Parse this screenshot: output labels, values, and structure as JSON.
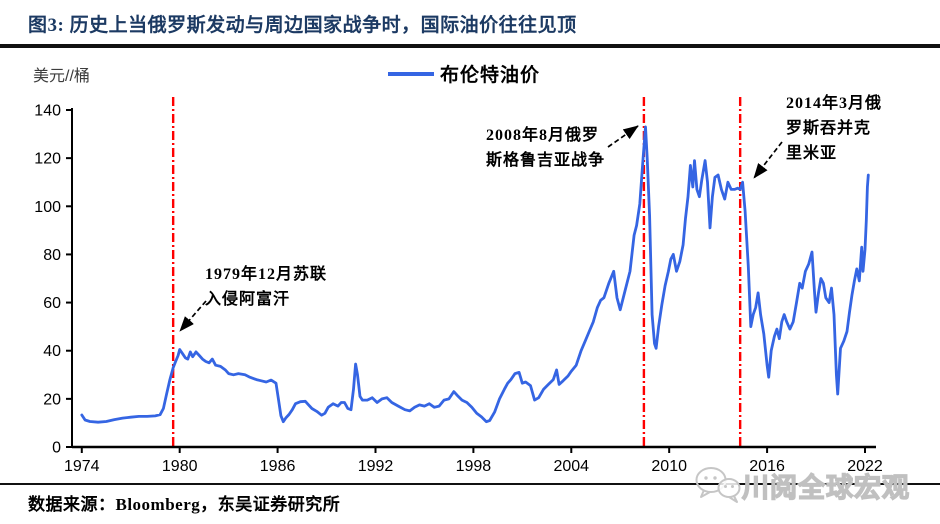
{
  "header": {
    "title": "图3:  历史上当俄罗斯发动与周边国家战争时，国际油价往往见顶"
  },
  "chart": {
    "unit_label": "美元//桶",
    "legend_label": "布伦特油价"
  },
  "annotations": {
    "afghanistan": {
      "text": "1979年12月苏联\n入侵阿富汗"
    },
    "georgia": {
      "text": "2008年8月俄罗\n斯格鲁吉亚战争"
    },
    "crimea": {
      "text": "2014年3月俄\n罗斯吞并克\n里米亚"
    }
  },
  "footer": {
    "source": "数据来源：Bloomberg，东吴证券研究所",
    "watermark": "川阅全球宏观"
  },
  "chart_data": {
    "type": "line",
    "title": "历史上当俄罗斯发动与周边国家战争时，国际油价往往见顶",
    "ylabel": "美元/桶",
    "ylim": [
      0,
      140
    ],
    "y_ticks": [
      0,
      20,
      40,
      60,
      80,
      100,
      120,
      140
    ],
    "x_ticks": [
      1974,
      1980,
      1986,
      1992,
      1998,
      2004,
      2010,
      2016,
      2022
    ],
    "x_range": [
      1973.4,
      2022.7
    ],
    "grid": false,
    "legend_position": "top-center",
    "colors": {
      "line": "#3565E3",
      "event_line": "#FF0000",
      "axis": "#000000",
      "title": "#1C3A63"
    },
    "event_lines": [
      {
        "year": 1979.6,
        "label": "1979年12月苏联入侵阿富汗"
      },
      {
        "year": 2008.45,
        "label": "2008年8月俄罗斯格鲁吉亚战争"
      },
      {
        "year": 2014.35,
        "label": "2014年3月俄罗斯吞并克里米亚"
      }
    ],
    "series": [
      {
        "name": "布伦特油价",
        "points": [
          [
            1974.0,
            13.3
          ],
          [
            1974.2,
            11.2
          ],
          [
            1974.5,
            10.6
          ],
          [
            1975.0,
            10.3
          ],
          [
            1975.5,
            10.6
          ],
          [
            1976.0,
            11.4
          ],
          [
            1976.5,
            12.0
          ],
          [
            1977.0,
            12.4
          ],
          [
            1977.5,
            12.7
          ],
          [
            1978.0,
            12.7
          ],
          [
            1978.5,
            12.9
          ],
          [
            1978.8,
            13.4
          ],
          [
            1979.0,
            16.0
          ],
          [
            1979.2,
            22.0
          ],
          [
            1979.4,
            28.0
          ],
          [
            1979.6,
            33.0
          ],
          [
            1979.75,
            35.5
          ],
          [
            1979.9,
            38.0
          ],
          [
            1980.0,
            40.5
          ],
          [
            1980.2,
            38.5
          ],
          [
            1980.35,
            37.0
          ],
          [
            1980.5,
            36.5
          ],
          [
            1980.65,
            39.5
          ],
          [
            1980.8,
            37.5
          ],
          [
            1981.0,
            39.5
          ],
          [
            1981.2,
            38.0
          ],
          [
            1981.4,
            36.5
          ],
          [
            1981.6,
            35.5
          ],
          [
            1981.8,
            35.0
          ],
          [
            1982.0,
            36.5
          ],
          [
            1982.2,
            34.0
          ],
          [
            1982.5,
            33.5
          ],
          [
            1982.8,
            32.0
          ],
          [
            1983.0,
            30.5
          ],
          [
            1983.3,
            30.0
          ],
          [
            1983.6,
            30.5
          ],
          [
            1984.0,
            30.0
          ],
          [
            1984.3,
            29.0
          ],
          [
            1984.7,
            28.0
          ],
          [
            1985.0,
            27.5
          ],
          [
            1985.3,
            27.0
          ],
          [
            1985.6,
            27.8
          ],
          [
            1985.9,
            26.5
          ],
          [
            1986.05,
            20.0
          ],
          [
            1986.2,
            13.0
          ],
          [
            1986.35,
            10.5
          ],
          [
            1986.5,
            12.0
          ],
          [
            1986.7,
            13.5
          ],
          [
            1986.9,
            15.5
          ],
          [
            1987.1,
            18.0
          ],
          [
            1987.4,
            18.8
          ],
          [
            1987.7,
            19.0
          ],
          [
            1987.9,
            17.5
          ],
          [
            1988.1,
            16.0
          ],
          [
            1988.4,
            14.8
          ],
          [
            1988.7,
            13.2
          ],
          [
            1988.9,
            14.0
          ],
          [
            1989.1,
            16.5
          ],
          [
            1989.4,
            18.0
          ],
          [
            1989.7,
            17.0
          ],
          [
            1989.9,
            18.5
          ],
          [
            1990.1,
            18.5
          ],
          [
            1990.3,
            16.0
          ],
          [
            1990.5,
            15.5
          ],
          [
            1990.65,
            24.0
          ],
          [
            1990.78,
            34.5
          ],
          [
            1990.9,
            30.0
          ],
          [
            1991.05,
            21.0
          ],
          [
            1991.2,
            19.5
          ],
          [
            1991.5,
            19.5
          ],
          [
            1991.8,
            20.5
          ],
          [
            1992.1,
            18.5
          ],
          [
            1992.4,
            20.0
          ],
          [
            1992.7,
            20.5
          ],
          [
            1993.0,
            18.5
          ],
          [
            1993.4,
            17.0
          ],
          [
            1993.8,
            15.5
          ],
          [
            1994.1,
            15.0
          ],
          [
            1994.4,
            16.5
          ],
          [
            1994.7,
            17.5
          ],
          [
            1995.0,
            17.0
          ],
          [
            1995.3,
            18.0
          ],
          [
            1995.6,
            16.5
          ],
          [
            1995.9,
            17.0
          ],
          [
            1996.2,
            19.5
          ],
          [
            1996.5,
            20.0
          ],
          [
            1996.8,
            23.0
          ],
          [
            1997.0,
            21.5
          ],
          [
            1997.3,
            19.5
          ],
          [
            1997.6,
            18.5
          ],
          [
            1997.9,
            16.5
          ],
          [
            1998.2,
            14.0
          ],
          [
            1998.5,
            12.5
          ],
          [
            1998.8,
            10.5
          ],
          [
            1999.0,
            11.0
          ],
          [
            1999.3,
            14.5
          ],
          [
            1999.6,
            20.0
          ],
          [
            1999.9,
            24.0
          ],
          [
            2000.1,
            26.5
          ],
          [
            2000.3,
            28.0
          ],
          [
            2000.55,
            30.5
          ],
          [
            2000.8,
            31.0
          ],
          [
            2001.0,
            26.5
          ],
          [
            2001.2,
            27.0
          ],
          [
            2001.5,
            25.5
          ],
          [
            2001.75,
            19.5
          ],
          [
            2002.0,
            20.5
          ],
          [
            2002.3,
            24.0
          ],
          [
            2002.6,
            26.0
          ],
          [
            2002.9,
            28.0
          ],
          [
            2003.1,
            32.0
          ],
          [
            2003.25,
            26.0
          ],
          [
            2003.5,
            27.5
          ],
          [
            2003.8,
            29.5
          ],
          [
            2004.0,
            31.5
          ],
          [
            2004.3,
            34.0
          ],
          [
            2004.6,
            40.0
          ],
          [
            2004.85,
            44.0
          ],
          [
            2005.1,
            48.0
          ],
          [
            2005.35,
            52.0
          ],
          [
            2005.6,
            58.0
          ],
          [
            2005.8,
            61.0
          ],
          [
            2006.0,
            62.0
          ],
          [
            2006.3,
            68.0
          ],
          [
            2006.6,
            73.0
          ],
          [
            2006.8,
            62.0
          ],
          [
            2007.0,
            57.0
          ],
          [
            2007.3,
            65.0
          ],
          [
            2007.6,
            73.0
          ],
          [
            2007.85,
            88.0
          ],
          [
            2008.0,
            92.0
          ],
          [
            2008.2,
            101.0
          ],
          [
            2008.4,
            120.0
          ],
          [
            2008.55,
            133.0
          ],
          [
            2008.65,
            120.0
          ],
          [
            2008.8,
            96.0
          ],
          [
            2008.95,
            55.0
          ],
          [
            2009.1,
            43.0
          ],
          [
            2009.2,
            41.0
          ],
          [
            2009.35,
            50.0
          ],
          [
            2009.55,
            59.0
          ],
          [
            2009.75,
            67.0
          ],
          [
            2009.95,
            73.0
          ],
          [
            2010.1,
            78.0
          ],
          [
            2010.25,
            80.0
          ],
          [
            2010.45,
            73.0
          ],
          [
            2010.65,
            77.0
          ],
          [
            2010.85,
            84.0
          ],
          [
            2011.0,
            95.0
          ],
          [
            2011.15,
            104.0
          ],
          [
            2011.3,
            117.0
          ],
          [
            2011.45,
            108.0
          ],
          [
            2011.55,
            119.0
          ],
          [
            2011.7,
            107.0
          ],
          [
            2011.85,
            104.0
          ],
          [
            2012.0,
            111.0
          ],
          [
            2012.2,
            119.0
          ],
          [
            2012.35,
            110.0
          ],
          [
            2012.5,
            91.0
          ],
          [
            2012.65,
            104.0
          ],
          [
            2012.8,
            112.0
          ],
          [
            2013.0,
            113.0
          ],
          [
            2013.2,
            107.0
          ],
          [
            2013.4,
            103.0
          ],
          [
            2013.6,
            110.0
          ],
          [
            2013.8,
            107.0
          ],
          [
            2014.0,
            107.0
          ],
          [
            2014.2,
            107.5
          ],
          [
            2014.35,
            107.0
          ],
          [
            2014.5,
            110.0
          ],
          [
            2014.65,
            98.0
          ],
          [
            2014.85,
            75.0
          ],
          [
            2015.0,
            50.0
          ],
          [
            2015.15,
            55.0
          ],
          [
            2015.3,
            58.0
          ],
          [
            2015.45,
            64.0
          ],
          [
            2015.6,
            55.0
          ],
          [
            2015.8,
            47.0
          ],
          [
            2016.0,
            34.0
          ],
          [
            2016.1,
            29.0
          ],
          [
            2016.25,
            40.0
          ],
          [
            2016.45,
            46.0
          ],
          [
            2016.6,
            49.0
          ],
          [
            2016.75,
            45.0
          ],
          [
            2016.9,
            52.0
          ],
          [
            2017.05,
            55.0
          ],
          [
            2017.2,
            52.0
          ],
          [
            2017.4,
            49.0
          ],
          [
            2017.6,
            52.0
          ],
          [
            2017.8,
            60.0
          ],
          [
            2018.0,
            68.0
          ],
          [
            2018.15,
            66.0
          ],
          [
            2018.35,
            73.0
          ],
          [
            2018.55,
            76.0
          ],
          [
            2018.75,
            81.0
          ],
          [
            2018.9,
            65.0
          ],
          [
            2019.0,
            56.0
          ],
          [
            2019.15,
            64.0
          ],
          [
            2019.3,
            70.0
          ],
          [
            2019.45,
            68.0
          ],
          [
            2019.6,
            62.0
          ],
          [
            2019.8,
            60.0
          ],
          [
            2019.95,
            66.0
          ],
          [
            2020.1,
            55.0
          ],
          [
            2020.25,
            30.0
          ],
          [
            2020.33,
            22.0
          ],
          [
            2020.5,
            41.0
          ],
          [
            2020.7,
            44.0
          ],
          [
            2020.9,
            48.0
          ],
          [
            2021.05,
            56.0
          ],
          [
            2021.2,
            63.0
          ],
          [
            2021.35,
            69.0
          ],
          [
            2021.5,
            74.0
          ],
          [
            2021.65,
            69.0
          ],
          [
            2021.8,
            83.0
          ],
          [
            2021.88,
            73.0
          ],
          [
            2022.0,
            82.0
          ],
          [
            2022.08,
            94.0
          ],
          [
            2022.15,
            108.0
          ],
          [
            2022.2,
            113.0
          ]
        ]
      }
    ]
  }
}
